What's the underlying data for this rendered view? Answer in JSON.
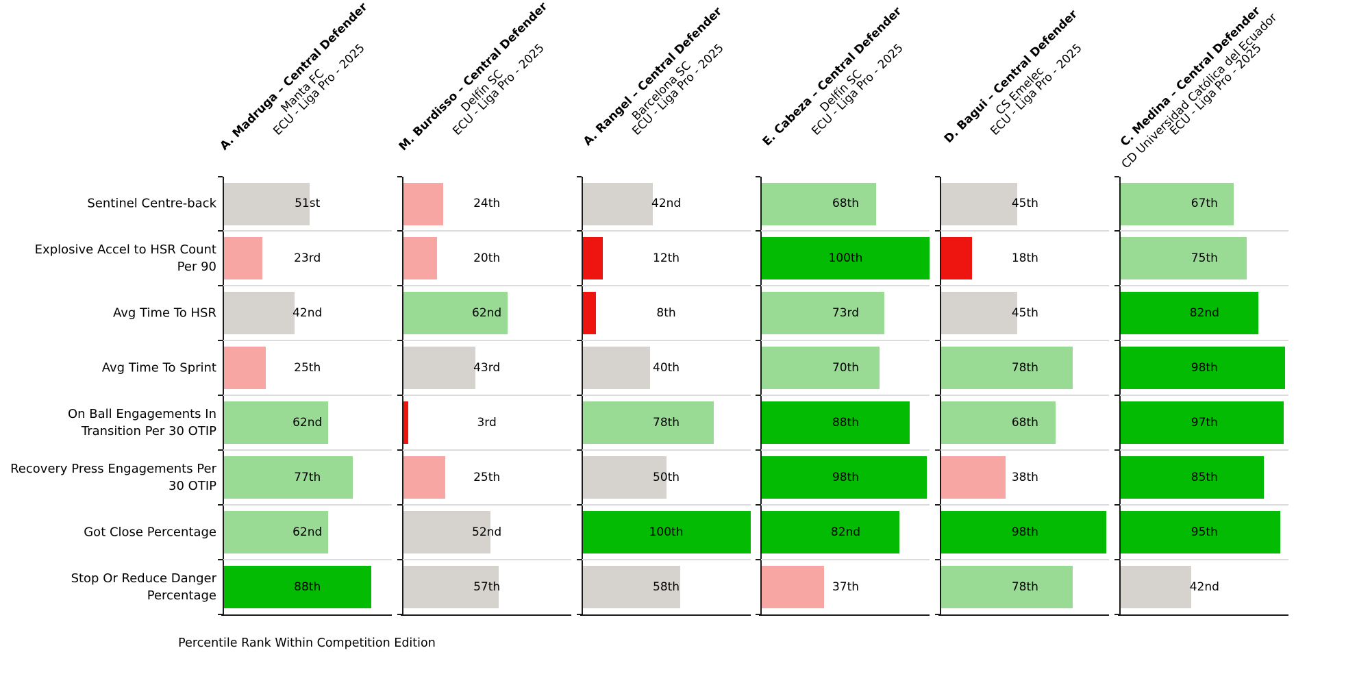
{
  "chart_data": {
    "type": "bar",
    "orientation": "horizontal",
    "title": "",
    "xlabel": "Percentile Rank Within Competition Edition",
    "xlim": [
      0,
      100
    ],
    "grid": "row-separators-only",
    "background": "#ffffff",
    "metrics": [
      "Sentinel Centre-back",
      "Explosive Accel to HSR Count\nPer 90",
      "Avg Time To HSR",
      "Avg Time To Sprint",
      "On Ball Engagements In\nTransition Per 30 OTIP",
      "Recovery Press Engagements Per\n30 OTIP",
      "Got Close Percentage",
      "Stop Or Reduce Danger\nPercentage"
    ],
    "players": [
      {
        "name": "A. Madruga – Central Defender",
        "team": "Manta FC",
        "competition": "ECU - Liga Pro - 2025",
        "values": [
          51,
          23,
          42,
          25,
          62,
          77,
          62,
          88
        ],
        "labels": [
          "51st",
          "23rd",
          "42nd",
          "25th",
          "62nd",
          "77th",
          "62nd",
          "88th"
        ]
      },
      {
        "name": "M. Burdisso – Central Defender",
        "team": "Delfín SC",
        "competition": "ECU - Liga Pro - 2025",
        "values": [
          24,
          20,
          62,
          43,
          3,
          25,
          52,
          57
        ],
        "labels": [
          "24th",
          "20th",
          "62nd",
          "43rd",
          "3rd",
          "25th",
          "52nd",
          "57th"
        ]
      },
      {
        "name": "A. Rangel – Central Defender",
        "team": "Barcelona SC",
        "competition": "ECU - Liga Pro - 2025",
        "values": [
          42,
          12,
          8,
          40,
          78,
          50,
          100,
          58
        ],
        "labels": [
          "42nd",
          "12th",
          "8th",
          "40th",
          "78th",
          "50th",
          "100th",
          "58th"
        ]
      },
      {
        "name": "E. Cabeza – Central Defender",
        "team": "Delfín SC",
        "competition": "ECU - Liga Pro - 2025",
        "values": [
          68,
          100,
          73,
          70,
          88,
          98,
          82,
          37
        ],
        "labels": [
          "68th",
          "100th",
          "73rd",
          "70th",
          "88th",
          "98th",
          "82nd",
          "37th"
        ]
      },
      {
        "name": "D. Bagui – Central Defender",
        "team": "CS Emelec",
        "competition": "ECU - Liga Pro - 2025",
        "values": [
          45,
          18,
          45,
          78,
          68,
          38,
          98,
          78
        ],
        "labels": [
          "45th",
          "18th",
          "45th",
          "78th",
          "68th",
          "38th",
          "98th",
          "78th"
        ]
      },
      {
        "name": "C. Medina – Central Defender",
        "team": "CD Universidad Católica del Ecuador",
        "competition": "ECU - Liga Pro - 2025",
        "values": [
          67,
          75,
          82,
          98,
          97,
          85,
          95,
          42
        ],
        "labels": [
          "67th",
          "75th",
          "82nd",
          "98th",
          "97th",
          "85th",
          "95th",
          "42nd"
        ]
      }
    ],
    "color_bands": [
      {
        "max": 19,
        "name": "very-low",
        "hex": "#ee1511"
      },
      {
        "max": 39,
        "name": "low",
        "hex": "#f8a6a3"
      },
      {
        "max": 59,
        "name": "average",
        "hex": "#d6d3cf"
      },
      {
        "max": 79,
        "name": "good",
        "hex": "#99da95"
      },
      {
        "max": 100,
        "name": "excellent",
        "hex": "#02bb02"
      }
    ]
  }
}
